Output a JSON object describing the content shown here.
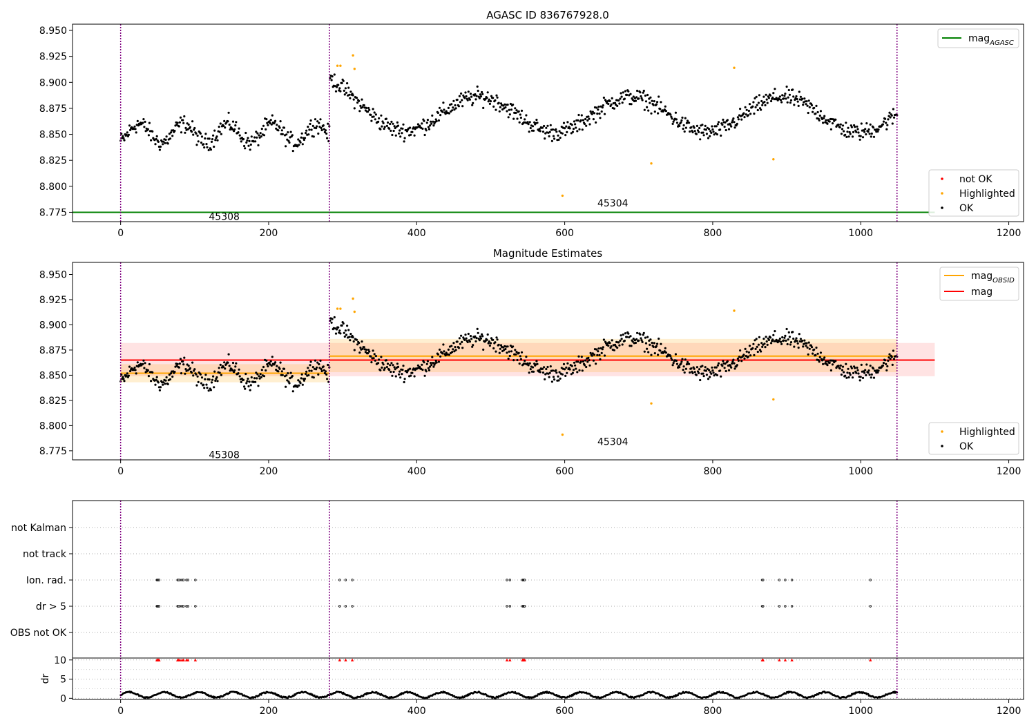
{
  "chart_data": [
    {
      "type": "scatter",
      "title": "AGASC ID 836767928.0",
      "xlabel": "",
      "ylabel": "",
      "xlim": [
        -65,
        1220
      ],
      "ylim": [
        8.766,
        8.956
      ],
      "x_ticks": [
        0,
        200,
        400,
        600,
        800,
        1000,
        1200
      ],
      "y_ticks": [
        8.775,
        8.8,
        8.825,
        8.85,
        8.875,
        8.9,
        8.925,
        8.95
      ],
      "grid": false,
      "obsid_boundaries": [
        0,
        282,
        1049
      ],
      "obsid_labels": [
        {
          "label": "45308",
          "x": 140,
          "y": 8.771
        },
        {
          "label": "45304",
          "x": 665,
          "y": 8.784
        }
      ],
      "segments": [
        {
          "x_start": 0,
          "x_end": 282,
          "base": 8.851,
          "amplitude": 0.009,
          "period": 60,
          "noise": 0.007
        },
        {
          "x_start": 283,
          "x_end": 1049,
          "base": 8.869,
          "amplitude": 0.017,
          "period": 205,
          "noise": 0.007
        }
      ],
      "highlighted_points": [
        {
          "x": 293,
          "y": 8.916
        },
        {
          "x": 297,
          "y": 8.916
        },
        {
          "x": 314,
          "y": 8.926
        },
        {
          "x": 316,
          "y": 8.913
        },
        {
          "x": 597,
          "y": 8.791
        },
        {
          "x": 717,
          "y": 8.822
        },
        {
          "x": 829,
          "y": 8.914
        },
        {
          "x": 882,
          "y": 8.826
        }
      ],
      "lines": [
        {
          "name": "mag_AGASC",
          "y": 8.775,
          "x_range": [
            -65,
            1100
          ],
          "color": "#008000"
        }
      ],
      "legend_top": [
        {
          "name": "mag",
          "subscript": "AGASC",
          "color": "#008000"
        }
      ],
      "legend_bottom": [
        {
          "name": "not OK",
          "color": "#ff0000"
        },
        {
          "name": "Highlighted",
          "color": "#ffa500"
        },
        {
          "name": "OK",
          "color": "#000000"
        }
      ]
    },
    {
      "type": "scatter",
      "title": "Magnitude Estimates",
      "xlabel": "",
      "ylabel": "",
      "xlim": [
        -65,
        1220
      ],
      "ylim": [
        8.766,
        8.962
      ],
      "x_ticks": [
        0,
        200,
        400,
        600,
        800,
        1000,
        1200
      ],
      "y_ticks": [
        8.775,
        8.8,
        8.825,
        8.85,
        8.875,
        8.9,
        8.925,
        8.95
      ],
      "grid": false,
      "obsid_boundaries": [
        0,
        282,
        1049
      ],
      "obsid_labels": [
        {
          "label": "45308",
          "x": 140,
          "y": 8.771
        },
        {
          "label": "45304",
          "x": 665,
          "y": 8.784
        }
      ],
      "lines": [
        {
          "name": "mag",
          "y": 8.865,
          "band": [
            8.849,
            8.882
          ],
          "x_range": [
            0,
            1100
          ],
          "color": "#ff0000"
        },
        {
          "name": "mag_OBSID 45308",
          "y": 8.852,
          "band": [
            8.843,
            8.861
          ],
          "x_range": [
            0,
            282
          ],
          "color": "#ffa500"
        },
        {
          "name": "mag_OBSID 45304",
          "y": 8.869,
          "band": [
            8.853,
            8.886
          ],
          "x_range": [
            282,
            1049
          ],
          "color": "#ffa500"
        }
      ],
      "legend_top": [
        {
          "name": "mag",
          "subscript": "OBSID",
          "color": "#ffa500"
        },
        {
          "name": "mag",
          "subscript": "",
          "color": "#ff0000"
        }
      ],
      "legend_bottom": [
        {
          "name": "Highlighted",
          "color": "#ffa500"
        },
        {
          "name": "OK",
          "color": "#000000"
        }
      ]
    },
    {
      "type": "scatter",
      "title": "",
      "xlabel": "",
      "ylabel": "",
      "xlim": [
        -65,
        1220
      ],
      "categories": [
        "not Kalman",
        "not track",
        "Ion. rad.",
        "dr > 5",
        "OBS not OK"
      ],
      "grid": true,
      "flag_x": [
        49,
        50,
        51,
        52,
        77,
        78,
        80,
        83,
        85,
        89,
        91,
        101,
        296,
        304,
        313,
        522,
        526,
        543,
        544,
        545,
        546,
        867,
        868,
        890,
        898,
        907,
        1013
      ],
      "flags": {
        "Ion. rad.": "flag_x",
        "dr > 5": "flag_x"
      },
      "obsid_boundaries": [
        0,
        282,
        1049
      ]
    },
    {
      "type": "scatter",
      "title": "",
      "xlabel": "",
      "ylabel": "dr",
      "xlim": [
        -65,
        1220
      ],
      "ylim": [
        -0.3,
        10.5
      ],
      "y_ticks": [
        0,
        5,
        10
      ],
      "x_ticks": [
        0,
        200,
        400,
        600,
        800,
        1000,
        1200
      ],
      "grid": true,
      "clipped_marker_value": 10,
      "clipped_marker_color": "#ff0000",
      "obsid_boundaries": [
        0,
        282,
        1049
      ]
    }
  ]
}
